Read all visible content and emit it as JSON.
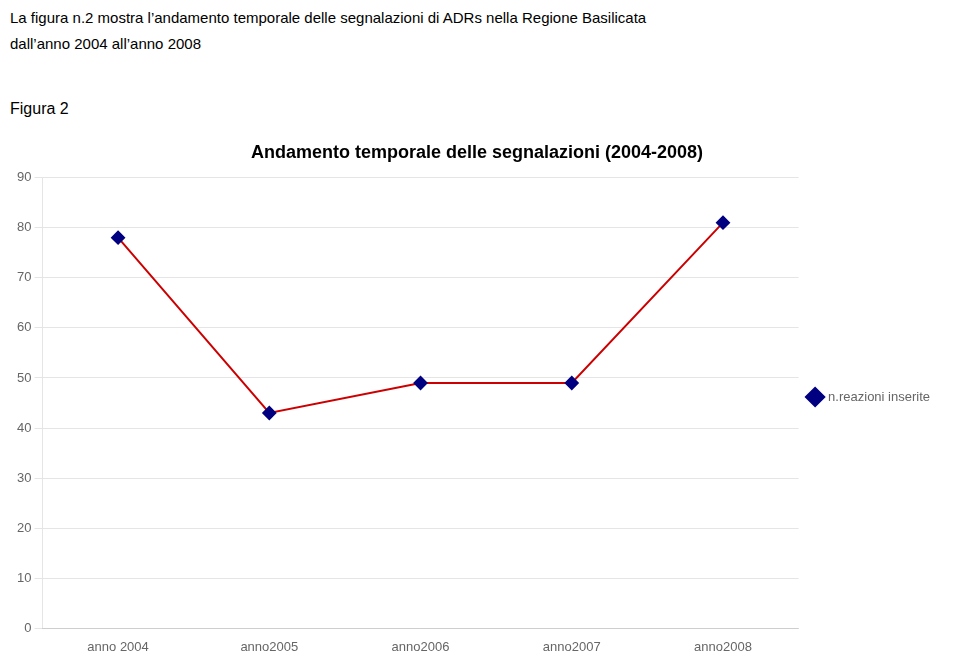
{
  "chart_data": {
    "type": "line",
    "title": "Andamento temporale delle segnalazioni (2004-2008)",
    "annotations": [
      "La figura n.2 mostra l’andamento temporale delle segnalazioni di ADRs nella Regione Basilicata",
      "dall’anno 2004 all’anno 2008",
      "Figura 2"
    ],
    "categories": [
      "anno 2004",
      "anno2005",
      "anno2006",
      "anno2007",
      "anno2008"
    ],
    "series": [
      {
        "name": "n.reazioni inserite",
        "color": "#cc0000",
        "colors": [
          "#000080",
          "#000080",
          "#000080",
          "#000080",
          "#000080"
        ],
        "marker": "diamond",
        "values": [
          78,
          43,
          49,
          49,
          81
        ]
      }
    ],
    "ylim": [
      0,
      90
    ],
    "yticks": [
      0,
      10,
      20,
      30,
      40,
      50,
      60,
      70,
      80,
      90
    ],
    "grid": true,
    "legend": "right"
  }
}
